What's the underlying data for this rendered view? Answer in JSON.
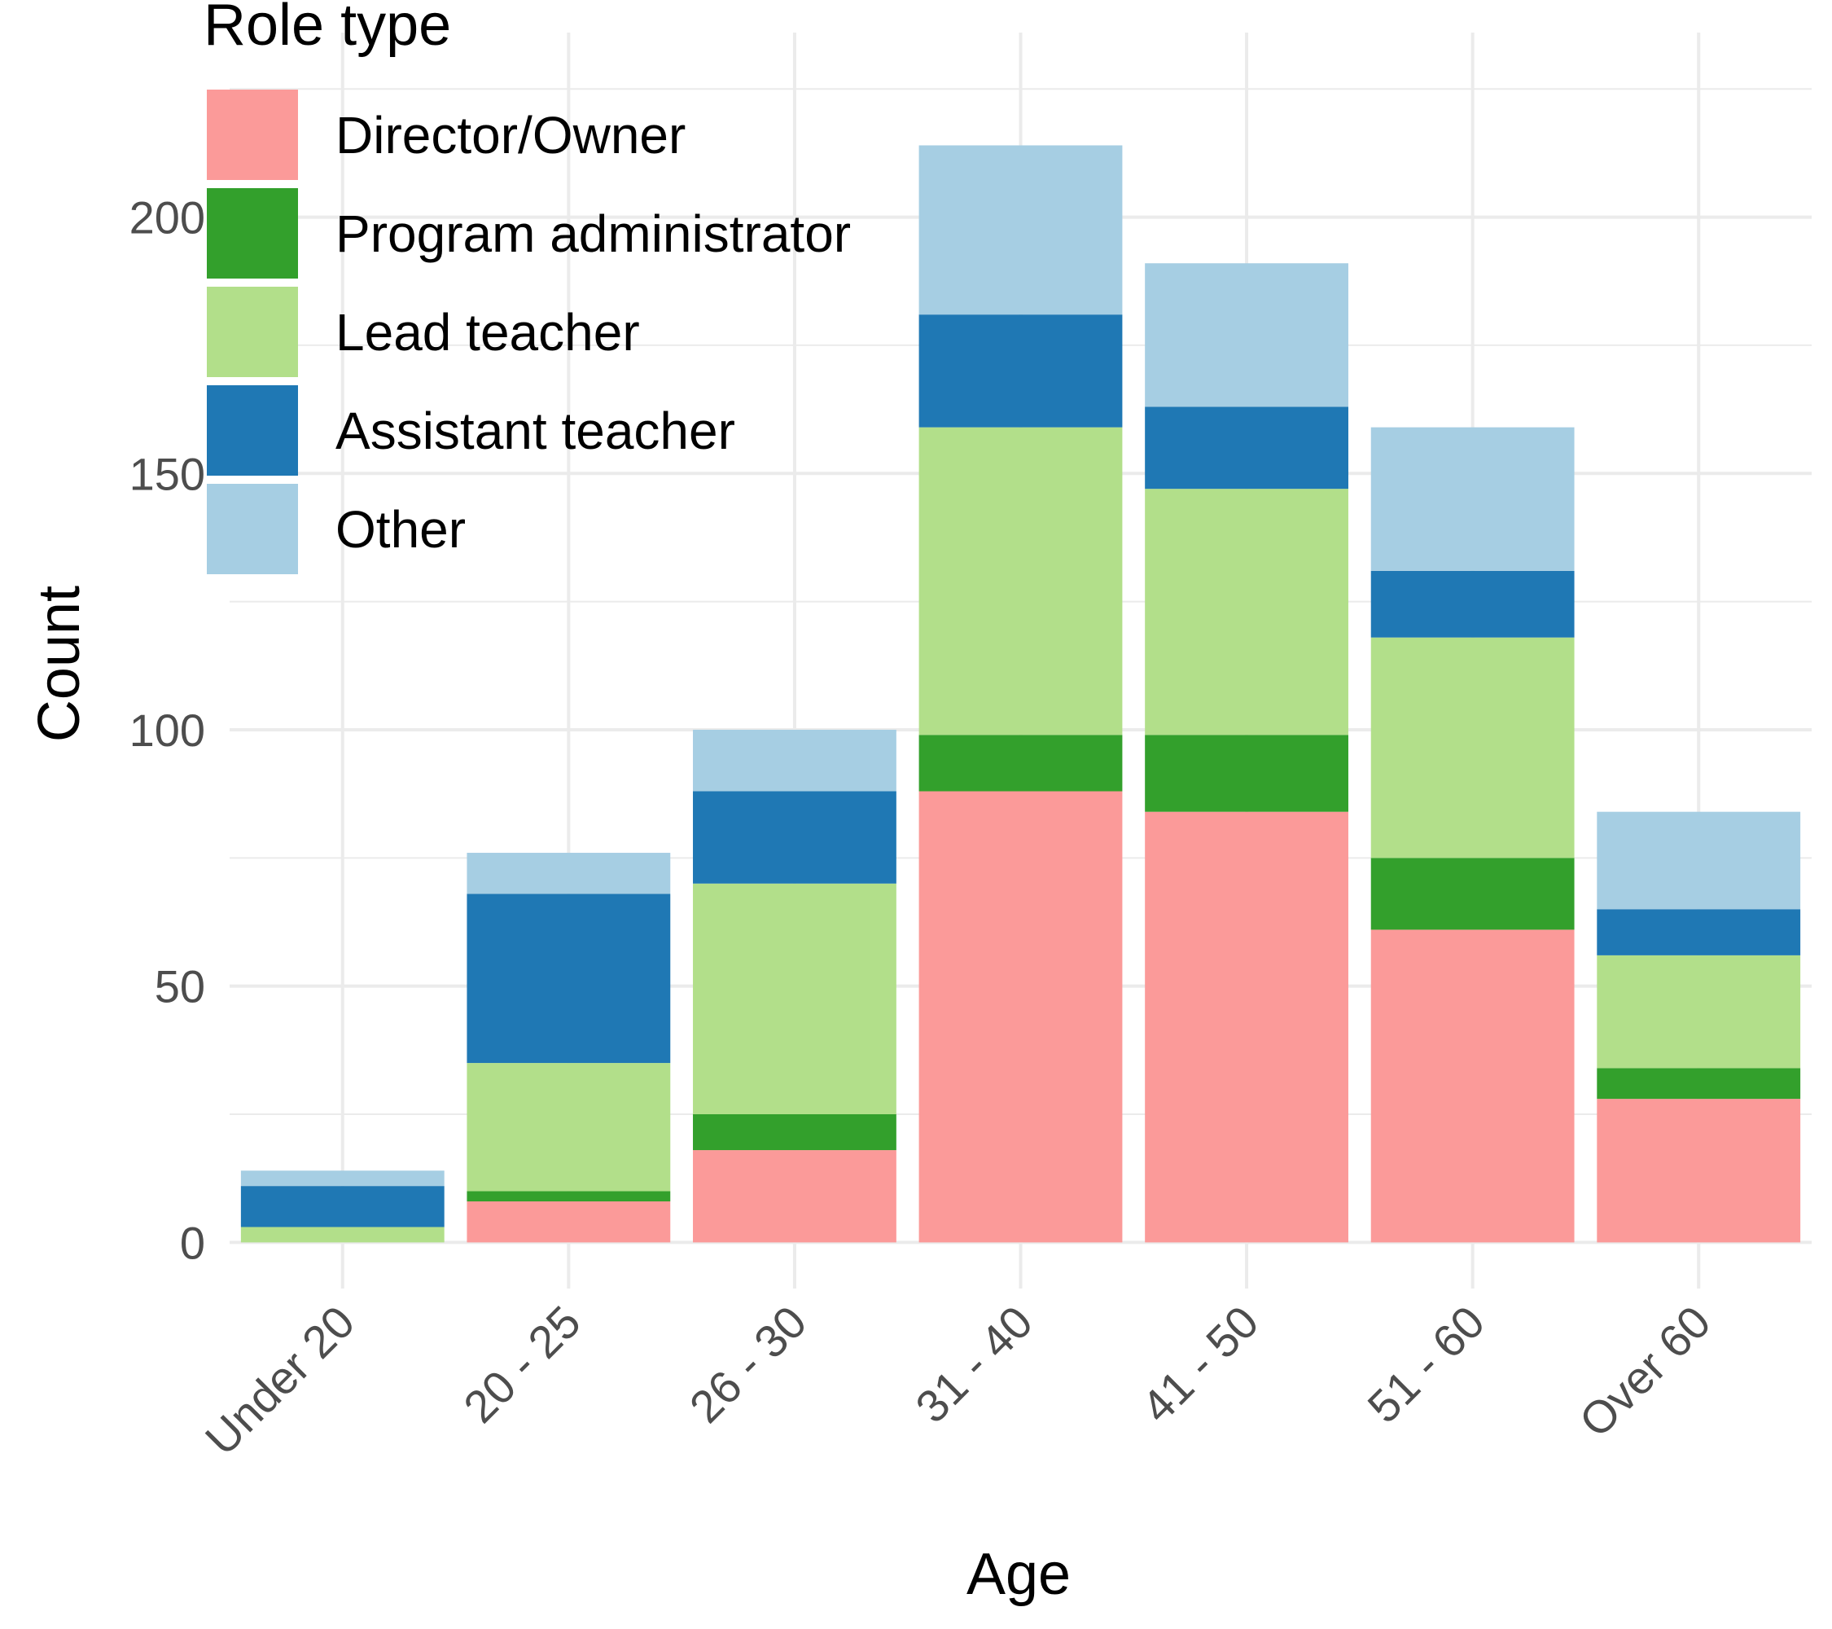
{
  "chart_data": {
    "type": "bar",
    "stacked": true,
    "categories": [
      "Under 20",
      "20 - 25",
      "26 - 30",
      "31 - 40",
      "41 - 50",
      "51 - 60",
      "Over 60"
    ],
    "series": [
      {
        "name": "Director/Owner",
        "color": "#fb9a99",
        "values": [
          0,
          8,
          18,
          88,
          84,
          61,
          28
        ]
      },
      {
        "name": "Program administrator",
        "color": "#33a02c",
        "values": [
          0,
          2,
          7,
          11,
          15,
          14,
          6
        ]
      },
      {
        "name": "Lead teacher",
        "color": "#b2df8a",
        "values": [
          3,
          25,
          45,
          60,
          48,
          43,
          22
        ]
      },
      {
        "name": "Assistant teacher",
        "color": "#1f78b4",
        "values": [
          8,
          33,
          18,
          22,
          16,
          13,
          9
        ]
      },
      {
        "name": "Other",
        "color": "#a6cee3",
        "values": [
          3,
          8,
          12,
          33,
          28,
          28,
          19
        ]
      }
    ],
    "xlabel": "Age",
    "ylabel": "Count",
    "ylim": [
      -9,
      236
    ],
    "y_ticks": [
      0,
      50,
      100,
      150,
      200
    ],
    "y_ticks_labels": [
      "0",
      "50",
      "100",
      "150",
      "200"
    ],
    "grid": true,
    "legend_title": "Role type",
    "legend_position": "top-left"
  }
}
